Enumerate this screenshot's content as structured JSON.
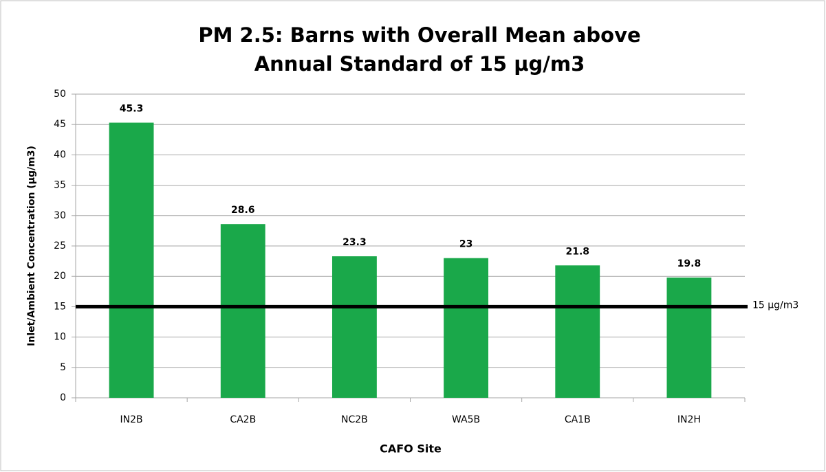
{
  "chart_data": {
    "type": "bar",
    "title": "PM 2.5: Barns with Overall Mean above Annual Standard of 15 µg/m3",
    "x_label": "CAFO Site",
    "y_label": "Inlet/Ambient Concentration (µg/m3)",
    "categories": [
      "IN2B",
      "CA2B",
      "NC2B",
      "WA5B",
      "CA1B",
      "IN2H"
    ],
    "values": [
      45.3,
      28.6,
      23.3,
      23,
      21.8,
      19.8
    ],
    "color": "#1aa84a",
    "ylim": [
      0,
      50
    ],
    "yticks": [
      0,
      5,
      10,
      15,
      20,
      25,
      30,
      35,
      40,
      45,
      50
    ],
    "grid": true,
    "reference_line": {
      "value": 15,
      "label": "15 µg/m3",
      "color": "#000000"
    }
  }
}
